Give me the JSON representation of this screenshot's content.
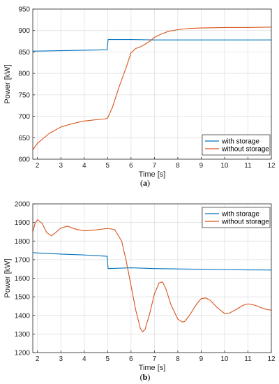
{
  "chart_data": [
    {
      "type": "line",
      "caption": "(a)",
      "caption_letter": "a",
      "xlabel": "Time [s]",
      "ylabel": "Power [kW]",
      "xlim": [
        1.8,
        12
      ],
      "ylim": [
        600,
        950
      ],
      "xticks": [
        2,
        3,
        4,
        5,
        6,
        7,
        8,
        9,
        10,
        11,
        12
      ],
      "yticks": [
        600,
        650,
        700,
        750,
        800,
        850,
        900,
        950
      ],
      "grid": true,
      "legend_position": "bottom-right",
      "series": [
        {
          "name": "with storage",
          "color": "#0072BD",
          "x": [
            1.8,
            2,
            3,
            4,
            4.98,
            5.0,
            5.02,
            5.3,
            6,
            7,
            8,
            9,
            10,
            11,
            12
          ],
          "y": [
            852,
            852,
            853,
            854,
            855,
            866,
            879,
            879,
            879,
            878,
            878,
            878,
            878,
            878,
            878
          ]
        },
        {
          "name": "without storage",
          "color": "#D95319",
          "x": [
            1.8,
            2,
            2.5,
            3,
            3.5,
            4,
            4.5,
            4.9,
            5.0,
            5.2,
            5.5,
            5.8,
            6.0,
            6.2,
            6.4,
            6.6,
            6.8,
            7.0,
            7.3,
            7.6,
            8.0,
            8.5,
            9.0,
            10,
            11,
            12
          ],
          "y": [
            622,
            637,
            660,
            675,
            683,
            689,
            692,
            694,
            696,
            720,
            770,
            815,
            848,
            858,
            862,
            868,
            875,
            884,
            892,
            898,
            902,
            905,
            906,
            907,
            907,
            908
          ]
        }
      ]
    },
    {
      "type": "line",
      "caption": "(b)",
      "caption_letter": "b",
      "xlabel": "Time [s]",
      "ylabel": "Power [kW]",
      "xlim": [
        1.8,
        12
      ],
      "ylim": [
        1200,
        2000
      ],
      "xticks": [
        2,
        3,
        4,
        5,
        6,
        7,
        8,
        9,
        10,
        11,
        12
      ],
      "yticks": [
        1200,
        1300,
        1400,
        1500,
        1600,
        1700,
        1800,
        1900,
        2000
      ],
      "grid": true,
      "legend_position": "top-right",
      "series": [
        {
          "name": "with storage",
          "color": "#0072BD",
          "x": [
            1.8,
            2,
            3,
            4,
            4.98,
            5.0,
            5.02,
            6,
            7,
            8,
            9,
            10,
            11,
            12
          ],
          "y": [
            1738,
            1736,
            1730,
            1725,
            1718,
            1685,
            1652,
            1656,
            1652,
            1650,
            1648,
            1646,
            1645,
            1644
          ]
        },
        {
          "name": "without storage",
          "color": "#D95319",
          "x": [
            1.8,
            1.9,
            2.0,
            2.2,
            2.4,
            2.6,
            2.8,
            3.0,
            3.3,
            3.6,
            4.0,
            4.5,
            5.0,
            5.3,
            5.6,
            5.8,
            6.0,
            6.2,
            6.4,
            6.5,
            6.6,
            6.8,
            7.0,
            7.2,
            7.35,
            7.5,
            7.7,
            8.0,
            8.2,
            8.3,
            8.5,
            8.8,
            9.0,
            9.2,
            9.4,
            9.7,
            10.0,
            10.2,
            10.5,
            10.8,
            11.0,
            11.3,
            11.6,
            11.8,
            12.0
          ],
          "y": [
            1850,
            1895,
            1915,
            1895,
            1845,
            1828,
            1848,
            1870,
            1880,
            1865,
            1855,
            1860,
            1868,
            1862,
            1800,
            1690,
            1560,
            1430,
            1330,
            1312,
            1325,
            1410,
            1515,
            1575,
            1580,
            1540,
            1460,
            1380,
            1364,
            1368,
            1400,
            1460,
            1490,
            1494,
            1480,
            1440,
            1410,
            1412,
            1432,
            1455,
            1462,
            1455,
            1440,
            1432,
            1428
          ]
        }
      ]
    }
  ]
}
